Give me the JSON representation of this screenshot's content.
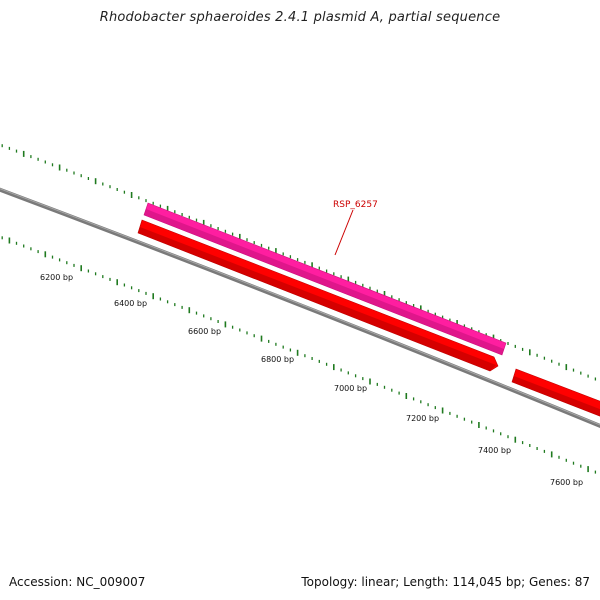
{
  "title": "Rhodobacter sphaeroides 2.4.1 plasmid A, partial sequence",
  "footer": {
    "accession": "Accession: NC_009007",
    "summary": "Topology: linear; Length: 114,045 bp; Genes: 87"
  },
  "colors": {
    "backbone": "#7a7a7a",
    "tick_green": "#1f7a1f",
    "gene_red": "#ff0000",
    "gene_magenta": "#ff1ea0",
    "label_red": "#cc0000"
  },
  "ticks": [
    {
      "label": "6200 bp"
    },
    {
      "label": "6400 bp"
    },
    {
      "label": "6600 bp"
    },
    {
      "label": "6800 bp"
    },
    {
      "label": "7000 bp"
    },
    {
      "label": "7200 bp"
    },
    {
      "label": "7400 bp"
    },
    {
      "label": "7600 bp"
    }
  ],
  "genes": [
    {
      "name": "RSP_6257"
    }
  ]
}
